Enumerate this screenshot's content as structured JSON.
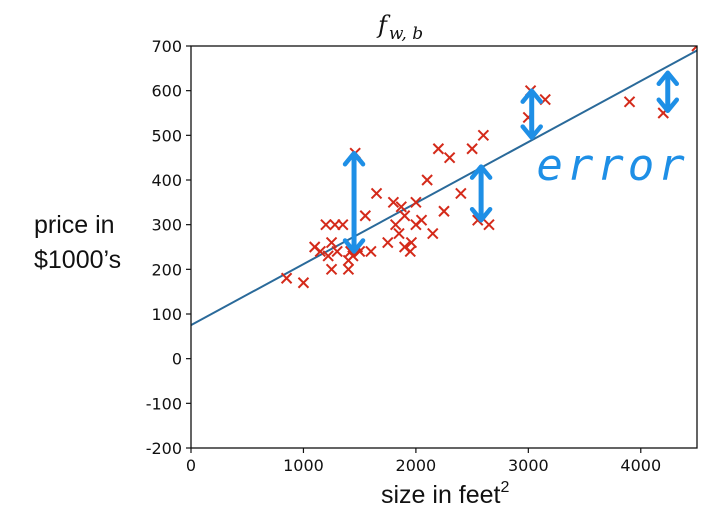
{
  "chart_data": {
    "type": "scatter",
    "title": "f",
    "title_subscript": "w, b",
    "xlabel": "size in feet",
    "xlabel_superscript": "2",
    "ylabel_lines": [
      "price in",
      "$1000’s"
    ],
    "xlim": [
      0,
      4500
    ],
    "ylim": [
      -200,
      700
    ],
    "xticks": [
      0,
      1000,
      2000,
      3000,
      4000
    ],
    "yticks": [
      -200,
      -100,
      0,
      100,
      200,
      300,
      400,
      500,
      600,
      700
    ],
    "grid": false,
    "legend": "none",
    "colors": {
      "points": "#d42a1a",
      "fit_line": "#2a6a9a",
      "annotation": "#1e8fe6",
      "axes": "#111111"
    },
    "fit_line": {
      "name": "",
      "x": [
        0,
        4500
      ],
      "y": [
        75,
        690
      ]
    },
    "series": [
      {
        "name": "",
        "marker": "x",
        "x": [
          850,
          1000,
          1100,
          1150,
          1200,
          1220,
          1250,
          1250,
          1280,
          1300,
          1350,
          1400,
          1400,
          1420,
          1440,
          1460,
          1480,
          1500,
          1550,
          1600,
          1650,
          1750,
          1800,
          1820,
          1850,
          1870,
          1900,
          1900,
          1950,
          1960,
          2000,
          2000,
          2050,
          2100,
          2150,
          2200,
          2250,
          2300,
          2400,
          2500,
          2550,
          2600,
          2650,
          3000,
          3020,
          3150,
          3900,
          4200,
          4500
        ],
        "y": [
          180,
          170,
          250,
          240,
          300,
          230,
          260,
          200,
          300,
          240,
          300,
          200,
          220,
          240,
          230,
          460,
          250,
          240,
          320,
          240,
          370,
          260,
          350,
          300,
          280,
          340,
          250,
          320,
          240,
          260,
          350,
          300,
          310,
          400,
          280,
          470,
          330,
          450,
          370,
          470,
          310,
          500,
          300,
          540,
          600,
          580,
          575,
          550,
          700
        ]
      }
    ],
    "annotations": [
      {
        "text": "error",
        "x": 3000,
        "y": 400
      },
      {
        "type": "double-arrow",
        "x": 1450,
        "y1": 460,
        "y2": 240
      },
      {
        "type": "double-arrow",
        "x": 2580,
        "y1": 430,
        "y2": 310
      },
      {
        "type": "double-arrow",
        "x": 3030,
        "y1": 600,
        "y2": 495
      },
      {
        "type": "double-arrow",
        "x": 4240,
        "y1": 640,
        "y2": 555
      }
    ]
  }
}
